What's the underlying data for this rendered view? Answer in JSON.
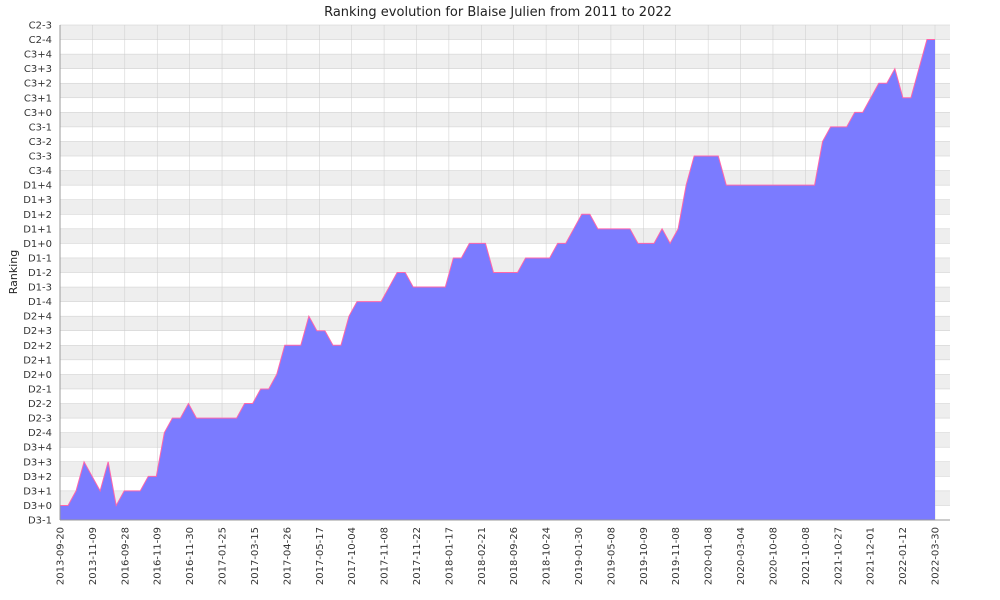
{
  "chart_data": {
    "type": "area",
    "title": "Ranking evolution for Blaise Julien from 2011 to 2022",
    "ylabel": "Ranking",
    "xlabel": "",
    "grid": true,
    "colors": {
      "fill": "#7b7bff",
      "line": "#ff66aa",
      "band_light": "#ffffff",
      "band_dark": "#eeeeee",
      "grid": "#cccccc",
      "axis": "#999999"
    },
    "y_categories": [
      "D3-1",
      "D3+0",
      "D3+1",
      "D3+2",
      "D3+3",
      "D3+4",
      "D2-4",
      "D2-3",
      "D2-2",
      "D2-1",
      "D2+0",
      "D2+1",
      "D2+2",
      "D2+3",
      "D2+4",
      "D1-4",
      "D1-3",
      "D1-2",
      "D1-1",
      "D1+0",
      "D1+1",
      "D1+2",
      "D1+3",
      "D1+4",
      "C3-4",
      "C3-3",
      "C3-2",
      "C3-1",
      "C3+0",
      "C3+1",
      "C3+2",
      "C3+3",
      "C3+4",
      "C2-4",
      "C2-3"
    ],
    "x_tick_labels": [
      "2013-09-20",
      "2013-11-09",
      "2016-09-28",
      "2016-11-09",
      "2016-11-30",
      "2017-01-25",
      "2017-03-15",
      "2017-04-26",
      "2017-05-17",
      "2017-10-04",
      "2017-11-08",
      "2017-11-22",
      "2018-01-17",
      "2018-02-21",
      "2018-09-26",
      "2018-10-24",
      "2019-01-30",
      "2019-05-08",
      "2019-10-09",
      "2019-11-08",
      "2020-01-08",
      "2020-03-04",
      "2020-10-08",
      "2021-10-08",
      "2021-10-27",
      "2021-12-01",
      "2022-01-12",
      "2022-03-30"
    ],
    "values": [
      "D3+0",
      "D3+0",
      "D3+1",
      "D3+3",
      "D3+2",
      "D3+1",
      "D3+3",
      "D3+0",
      "D3+1",
      "D3+1",
      "D3+1",
      "D3+2",
      "D3+2",
      "D2-4",
      "D2-3",
      "D2-3",
      "D2-2",
      "D2-3",
      "D2-3",
      "D2-3",
      "D2-3",
      "D2-3",
      "D2-3",
      "D2-2",
      "D2-2",
      "D2-1",
      "D2-1",
      "D2+0",
      "D2+2",
      "D2+2",
      "D2+2",
      "D2+4",
      "D2+3",
      "D2+3",
      "D2+2",
      "D2+2",
      "D2+4",
      "D1-4",
      "D1-4",
      "D1-4",
      "D1-4",
      "D1-3",
      "D1-2",
      "D1-2",
      "D1-3",
      "D1-3",
      "D1-3",
      "D1-3",
      "D1-3",
      "D1-1",
      "D1-1",
      "D1+0",
      "D1+0",
      "D1+0",
      "D1-2",
      "D1-2",
      "D1-2",
      "D1-2",
      "D1-1",
      "D1-1",
      "D1-1",
      "D1-1",
      "D1+0",
      "D1+0",
      "D1+1",
      "D1+2",
      "D1+2",
      "D1+1",
      "D1+1",
      "D1+1",
      "D1+1",
      "D1+1",
      "D1+0",
      "D1+0",
      "D1+0",
      "D1+1",
      "D1+0",
      "D1+1",
      "D1+4",
      "C3-3",
      "C3-3",
      "C3-3",
      "C3-3",
      "D1+4",
      "D1+4",
      "D1+4",
      "D1+4",
      "D1+4",
      "D1+4",
      "D1+4",
      "D1+4",
      "D1+4",
      "D1+4",
      "D1+4",
      "D1+4",
      "C3-2",
      "C3-1",
      "C3-1",
      "C3-1",
      "C3+0",
      "C3+0",
      "C3+1",
      "C3+2",
      "C3+2",
      "C3+3",
      "C3+1",
      "C3+1",
      "C3+3",
      "C2-4",
      "C2-4"
    ]
  }
}
